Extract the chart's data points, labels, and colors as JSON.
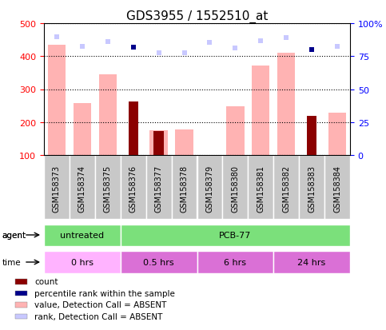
{
  "title": "GDS3955 / 1552510_at",
  "samples": [
    "GSM158373",
    "GSM158374",
    "GSM158375",
    "GSM158376",
    "GSM158377",
    "GSM158378",
    "GSM158379",
    "GSM158380",
    "GSM158381",
    "GSM158382",
    "GSM158383",
    "GSM158384"
  ],
  "value_absent": [
    435,
    258,
    345,
    100,
    175,
    178,
    100,
    248,
    372,
    410,
    100,
    228
  ],
  "count_values": [
    100,
    100,
    100,
    263,
    172,
    100,
    100,
    100,
    100,
    100,
    218,
    100
  ],
  "count_dark": [
    false,
    false,
    false,
    true,
    true,
    false,
    false,
    false,
    false,
    false,
    true,
    false
  ],
  "rank_absent": [
    458,
    430,
    444,
    428,
    410,
    410,
    443,
    425,
    447,
    457,
    420,
    430
  ],
  "percentile_dark": [
    false,
    false,
    false,
    true,
    false,
    false,
    false,
    false,
    false,
    false,
    true,
    false
  ],
  "percentile_values": [
    100,
    100,
    100,
    428,
    100,
    100,
    100,
    100,
    100,
    100,
    421,
    100
  ],
  "ylim_left": [
    100,
    500
  ],
  "ylim_right": [
    0,
    100
  ],
  "yticks_left": [
    100,
    200,
    300,
    400,
    500
  ],
  "yticks_right": [
    0,
    25,
    50,
    75,
    100
  ],
  "color_value_absent": "#ffb3b3",
  "color_count_dark": "#8b0000",
  "color_rank_absent": "#c8c8ff",
  "color_percentile_dark": "#00008b",
  "color_agent_untreated": "#7be07b",
  "color_agent_pcb": "#7be07b",
  "color_time_0": "#ffb3ff",
  "color_time_other": "#da70d6",
  "color_sample_box": "#c8c8c8",
  "legend_items": [
    {
      "color": "#8b0000",
      "label": "count"
    },
    {
      "color": "#00008b",
      "label": "percentile rank within the sample"
    },
    {
      "color": "#ffb3b3",
      "label": "value, Detection Call = ABSENT"
    },
    {
      "color": "#c8c8ff",
      "label": "rank, Detection Call = ABSENT"
    }
  ],
  "sample_fontsize": 7,
  "title_fontsize": 11
}
